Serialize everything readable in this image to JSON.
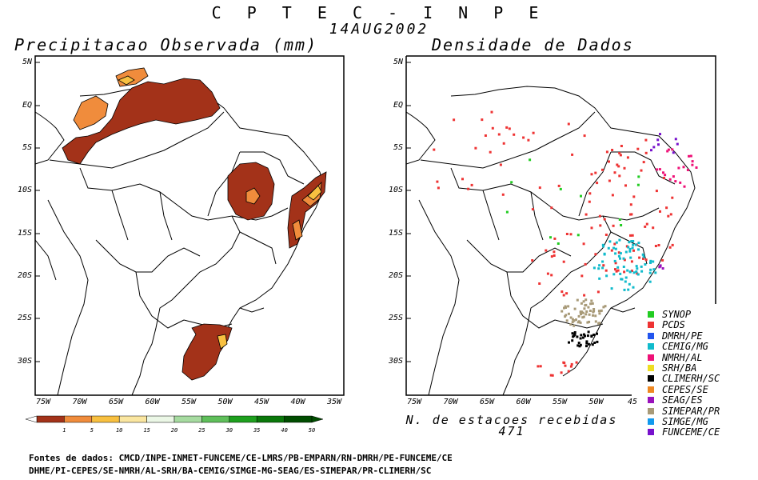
{
  "header": {
    "org": "C P T E C - I N P E",
    "date": "14AUG2002"
  },
  "left_panel": {
    "title": "Precipitacao Observada (mm)"
  },
  "right_panel": {
    "title": "Densidade de Dados"
  },
  "lat_labels": [
    "5N",
    "EQ",
    "5S",
    "10S",
    "15S",
    "20S",
    "25S",
    "30S"
  ],
  "lon_labels_left": [
    "75W",
    "70W",
    "65W",
    "60W",
    "55W",
    "50W",
    "45W",
    "40W",
    "35W"
  ],
  "lon_labels_right": [
    "75W",
    "70W",
    "65W",
    "60W",
    "55W",
    "50W",
    "45"
  ],
  "colorbar": {
    "ticks": [
      "1",
      "5",
      "10",
      "15",
      "20",
      "25",
      "30",
      "35",
      "40",
      "50"
    ],
    "colors": [
      "#a33219",
      "#f08c3c",
      "#f8c040",
      "#fae6a0",
      "#ebf7e6",
      "#a6dba0",
      "#5fbf5a",
      "#1ea01e",
      "#0a780a",
      "#004d00"
    ]
  },
  "station_count": {
    "label": "N. de estacoes recebidas",
    "value": "471"
  },
  "legend": [
    {
      "name": "SYNOP",
      "color": "#22cc22"
    },
    {
      "name": "PCDS",
      "color": "#ee3333"
    },
    {
      "name": "DMRH/PE",
      "color": "#2255ee"
    },
    {
      "name": "CEMIG/MG",
      "color": "#11bbcc"
    },
    {
      "name": "NMRH/AL",
      "color": "#ee1177"
    },
    {
      "name": "SRH/BA",
      "color": "#eedd22"
    },
    {
      "name": "CLIMERH/SC",
      "color": "#000000"
    },
    {
      "name": "CEPES/SE",
      "color": "#ee8822"
    },
    {
      "name": "SEAG/ES",
      "color": "#9911bb"
    },
    {
      "name": "SIMEPAR/PR",
      "color": "#a89a78"
    },
    {
      "name": "SIMGE/MG",
      "color": "#1199ee"
    },
    {
      "name": "FUNCEME/CE",
      "color": "#7711cc"
    }
  ],
  "sources": {
    "line1": "Fontes de dados: CMCD/INPE-INMET-FUNCEME/CE-LMRS/PB-EMPARN/RN-DMRH/PE-FUNCEME/CE",
    "line2": "DHME/PI-CEPES/SE-NMRH/AL-SRH/BA-CEMIG/SIMGE-MG-SEAG/ES-SIMEPAR/PR-CLIMERH/SC"
  }
}
